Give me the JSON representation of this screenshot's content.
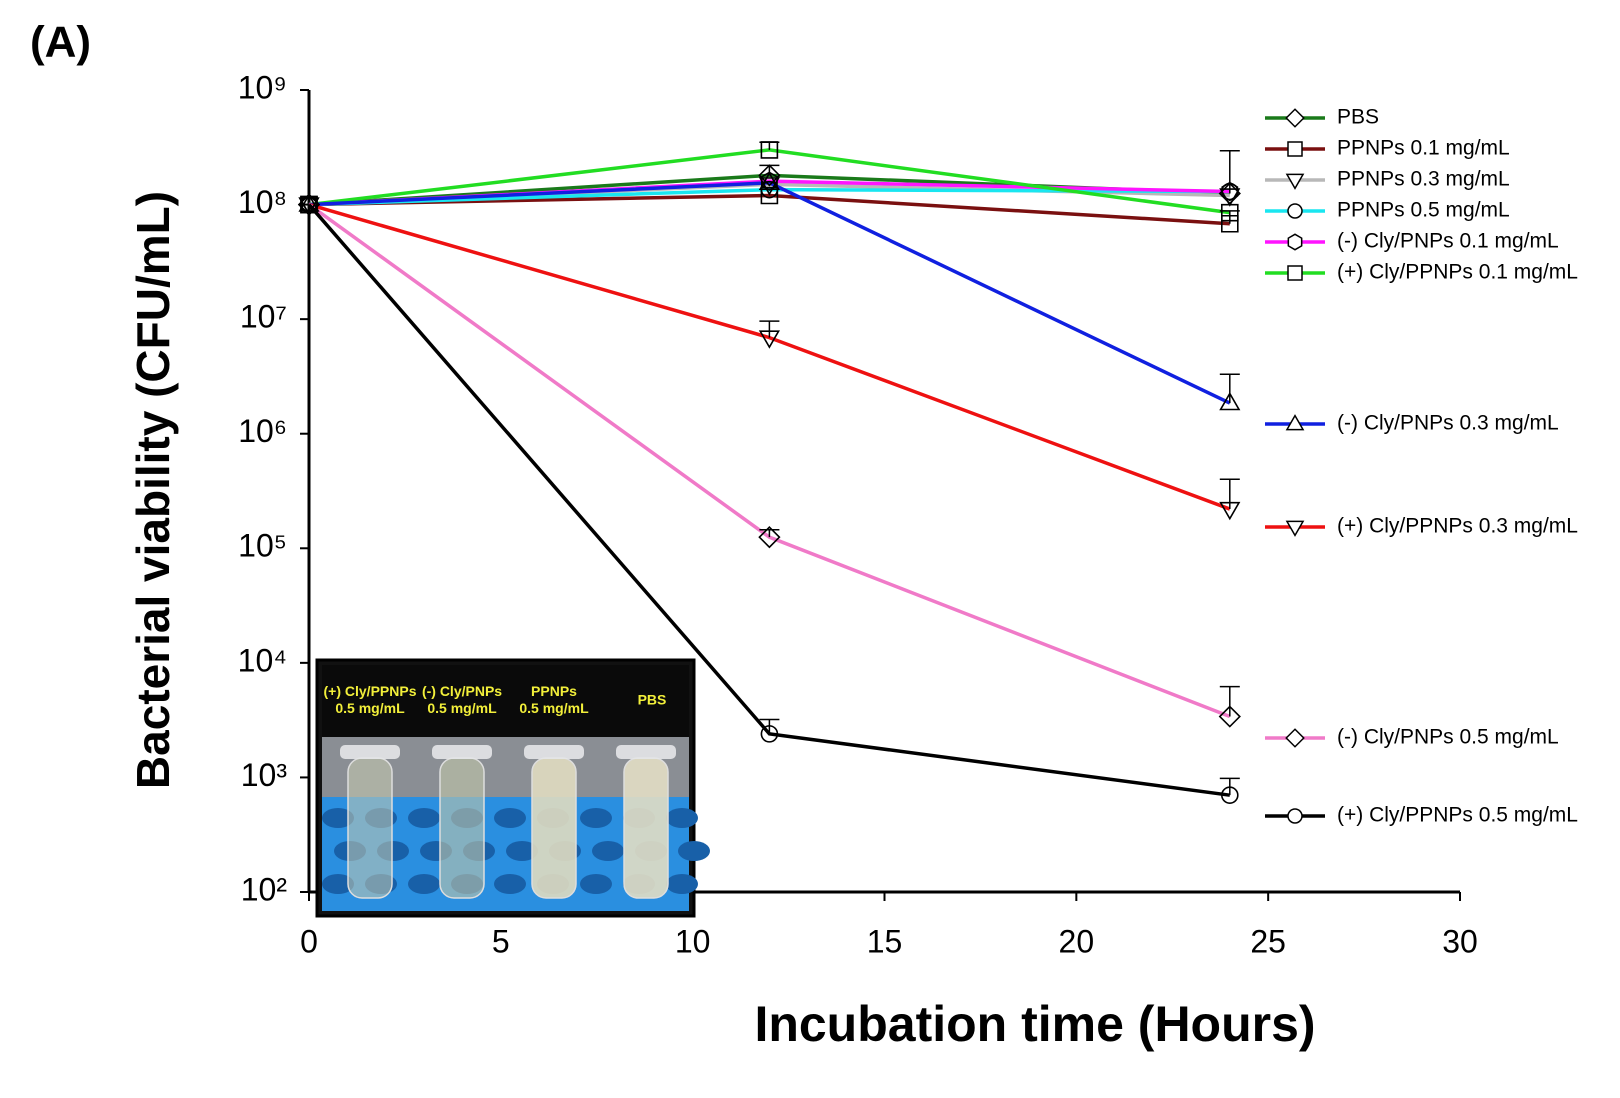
{
  "panel_label": "(A)",
  "chart_data": {
    "type": "line",
    "xlabel": "Incubation time (Hours)",
    "ylabel": "Bacterial viability (CFU/mL)",
    "x": [
      0,
      12,
      24
    ],
    "xlim": [
      0,
      30
    ],
    "xticks": [
      0,
      5,
      10,
      15,
      20,
      25,
      30
    ],
    "yscale": "log",
    "ylim": [
      100,
      1000000000
    ],
    "yticks": [
      {
        "value": 100,
        "label": "10²"
      },
      {
        "value": 1000,
        "label": "10³"
      },
      {
        "value": 10000,
        "label": "10⁴"
      },
      {
        "value": 100000,
        "label": "10⁵"
      },
      {
        "value": 1000000,
        "label": "10⁶"
      },
      {
        "value": 10000000,
        "label": "10⁷"
      },
      {
        "value": 100000000,
        "label": "10⁸"
      },
      {
        "value": 1000000000,
        "label": "10⁹"
      }
    ],
    "grid": false,
    "series": [
      {
        "name": "PBS",
        "color": "#1a7a1a",
        "marker": "diamond",
        "values": [
          100000000,
          180000000,
          125000000
        ],
        "errors": [
          null,
          40000000,
          170000000
        ]
      },
      {
        "name": "PPNPs 0.1 mg/mL",
        "color": "#7a1010",
        "marker": "square",
        "values": [
          100000000,
          120000000,
          68000000
        ],
        "errors": [
          null,
          null,
          20000000
        ]
      },
      {
        "name": "PPNPs 0.3 mg/mL",
        "color": "#b8b8b8",
        "marker": "triangle-down",
        "values": [
          100000000,
          150000000,
          120000000
        ],
        "errors": [
          null,
          null,
          null
        ]
      },
      {
        "name": "PPNPs 0.5 mg/mL",
        "color": "#19e6f0",
        "marker": "circle",
        "values": [
          100000000,
          135000000,
          130000000
        ],
        "errors": [
          null,
          null,
          null
        ]
      },
      {
        "name": "(-) Cly/PNPs 0.1 mg/mL",
        "color": "#ff14ff",
        "marker": "hexagon",
        "values": [
          100000000,
          160000000,
          130000000
        ],
        "errors": [
          null,
          null,
          null
        ]
      },
      {
        "name": "(+) Cly/PPNPs 0.1 mg/mL",
        "color": "#22dd22",
        "marker": "square",
        "values": [
          100000000,
          300000000,
          85000000
        ],
        "errors": [
          null,
          50000000,
          null
        ]
      },
      {
        "name": "(-) Cly/PNPs 0.3 mg/mL",
        "color": "#1020e0",
        "marker": "triangle-up",
        "values": [
          100000000,
          155000000,
          1850000
        ],
        "errors": [
          null,
          null,
          1450000
        ]
      },
      {
        "name": "(+) Cly/PPNPs 0.3 mg/mL",
        "color": "#ee1111",
        "marker": "triangle-down",
        "values": [
          100000000,
          6900000,
          220000
        ],
        "errors": [
          null,
          2700000,
          180000
        ]
      },
      {
        "name": "(-) Cly/PNPs 0.5 mg/mL",
        "color": "#f07ac8",
        "marker": "diamond",
        "values": [
          100000000,
          125000,
          3400
        ],
        "errors": [
          null,
          20000,
          2800
        ]
      },
      {
        "name": "(+) Cly/PPNPs 0.5 mg/mL",
        "color": "#000000",
        "marker": "circle",
        "values": [
          100000000,
          2400,
          700
        ],
        "errors": [
          null,
          800,
          280
        ]
      }
    ],
    "inset_labels": [
      [
        "(+) Cly/PPNPs",
        "0.5 mg/mL"
      ],
      [
        "(-) Cly/PNPs",
        "0.5 mg/mL"
      ],
      [
        "PPNPs",
        "0.5 mg/mL"
      ],
      [
        "PBS"
      ]
    ]
  }
}
